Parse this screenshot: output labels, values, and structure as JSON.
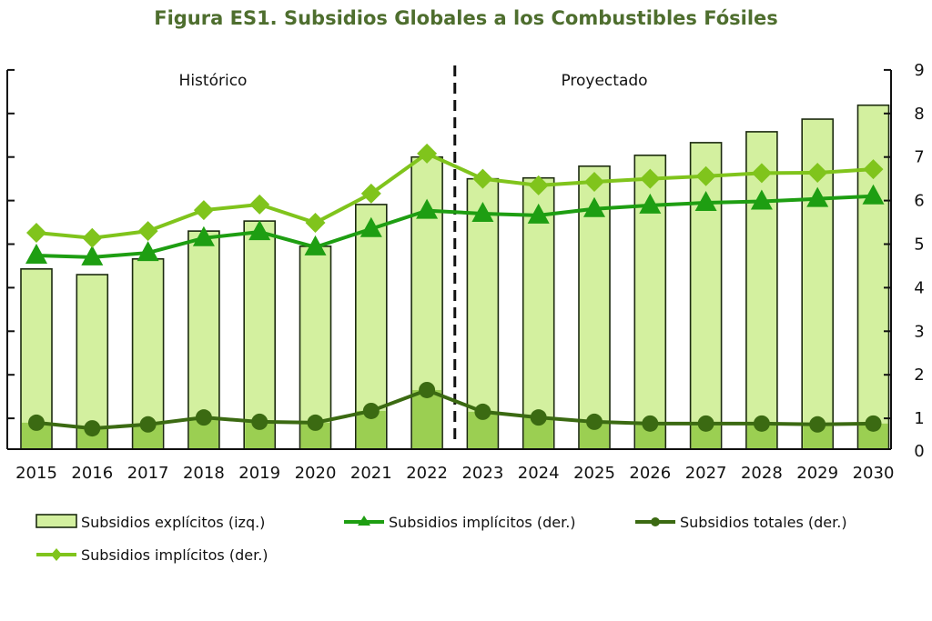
{
  "chart_data": {
    "type": "bar",
    "title": "Figura ES1. Subsidios Globales a los Combustibles Fósiles",
    "categories": [
      "2015",
      "2016",
      "2017",
      "2018",
      "2019",
      "2020",
      "2021",
      "2022",
      "2023",
      "2024",
      "2025",
      "2026",
      "2027",
      "2028",
      "2029",
      "2030"
    ],
    "regions": {
      "historical": "Histórico",
      "projected": "Proyectado",
      "divider_after": "2022"
    },
    "y_right": {
      "ylim": [
        0,
        9
      ],
      "ticks": [
        "0",
        "1",
        "2",
        "3",
        "4",
        "5",
        "6",
        "7",
        "8",
        "9"
      ]
    },
    "grid": false,
    "legend_placement": "bottom",
    "series": [
      {
        "name": "Subsidios explícitos (izq.)",
        "type": "bar",
        "color": "#d3f09f",
        "values": [
          4.43,
          4.3,
          4.66,
          5.3,
          5.53,
          4.95,
          5.91,
          7.0,
          6.5,
          6.52,
          6.79,
          7.04,
          7.33,
          7.58,
          7.87,
          8.19
        ]
      },
      {
        "name": "Subsidios implícitos (der.)",
        "type": "line",
        "marker": "triangle",
        "color": "#1e9e12",
        "values": [
          4.74,
          4.7,
          4.8,
          5.14,
          5.28,
          4.93,
          5.35,
          5.77,
          5.7,
          5.66,
          5.81,
          5.89,
          5.95,
          5.98,
          6.04,
          6.1
        ]
      },
      {
        "name": "Subsidios totales (der.)",
        "type": "line",
        "marker": "circle",
        "color": "#3b6a12",
        "values": [
          0.9,
          0.77,
          0.86,
          1.02,
          0.92,
          0.9,
          1.17,
          1.65,
          1.15,
          1.02,
          0.92,
          0.88,
          0.88,
          0.88,
          0.86,
          0.88
        ]
      },
      {
        "name": "Subsidios implícitos (der.)",
        "type": "line",
        "marker": "diamond",
        "color": "#80c41c",
        "values": [
          5.26,
          5.14,
          5.3,
          5.78,
          5.91,
          5.49,
          6.16,
          7.08,
          6.5,
          6.35,
          6.43,
          6.5,
          6.56,
          6.63,
          6.64,
          6.72
        ]
      }
    ],
    "inner_bar_color": "#9bcf52"
  }
}
